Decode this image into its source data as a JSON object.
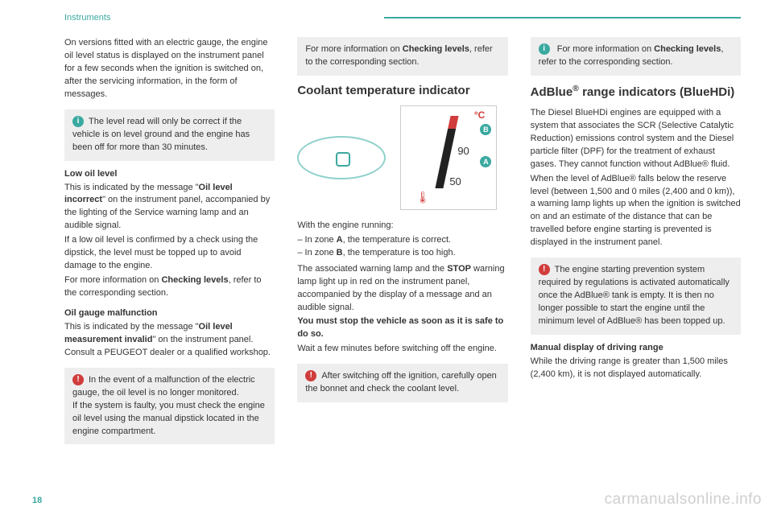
{
  "header": {
    "section": "Instruments"
  },
  "pageNumber": "18",
  "watermark": "carmanualsonline.info",
  "col1": {
    "intro": "On versions fitted with an electric gauge, the engine oil level status is displayed on the instrument panel for a few seconds when the ignition is switched on, after the servicing information, in the form of messages.",
    "infoBox": "The level read will only be correct if the vehicle is on level ground and the engine has been off for more than 30 minutes.",
    "lowOil": {
      "title": "Low oil level",
      "p1a": "This is indicated by the message \"",
      "p1b": "Oil level incorrect",
      "p1c": "\" on the instrument panel, accompanied by the lighting of the Service warning lamp and an audible signal.",
      "p2": "If a low oil level is confirmed by a check using the dipstick, the level must be topped up to avoid damage to the engine.",
      "p3a": "For more information on ",
      "p3b": "Checking levels",
      "p3c": ", refer to the corresponding section."
    },
    "malf": {
      "title": "Oil gauge malfunction",
      "p1a": "This is indicated by the message \"",
      "p1b": "Oil level measurement invalid",
      "p1c": "\" on the instrument panel. Consult a PEUGEOT dealer or a qualified workshop."
    },
    "warnBox": "In the event of a malfunction of the electric gauge, the oil level is no longer monitored.\nIf the system is faulty, you must check the engine oil level using the manual dipstick located in the engine compartment."
  },
  "col2": {
    "topBoxA": "For more information on ",
    "topBoxB": "Checking levels",
    "topBoxC": ", refer to the corresponding section.",
    "h2": "Coolant temperature indicator",
    "gauge": {
      "c": "°C",
      "b": "B",
      "a": "A",
      "v90": "90",
      "v50": "50",
      "icon": "🌡"
    },
    "running": "With the engine running:",
    "zoneA_a": "In zone ",
    "zoneA_b": "A",
    "zoneA_c": ", the temperature is correct.",
    "zoneB_a": "In zone ",
    "zoneB_b": "B",
    "zoneB_c": ", the temperature is too high.",
    "assoc_a": "The associated warning lamp and the ",
    "assoc_b": "STOP",
    "assoc_c": " warning lamp light up in red on the instrument panel, accompanied by the display of a message and an audible signal.",
    "stop": "You must stop the vehicle as soon as it is safe to do so.",
    "wait": "Wait a few minutes before switching off the engine.",
    "warnBox": "After switching off the ignition, carefully open the bonnet and check the coolant level."
  },
  "col3": {
    "topBoxA": "For more information on ",
    "topBoxB": "Checking levels",
    "topBoxC": ", refer to the corresponding section.",
    "h2a": "AdBlue",
    "h2b": "®",
    "h2c": " range indicators (BlueHDi)",
    "p1": "The Diesel BlueHDi engines are equipped with a system that associates the SCR (Selective Catalytic Reduction) emissions control system and the Diesel particle filter (DPF) for the treatment of exhaust gases. They cannot function without AdBlue® fluid.",
    "p2": "When the level of AdBlue® falls below the reserve level (between 1,500 and 0 miles (2,400 and 0 km)), a warning lamp lights up when the ignition is switched on and an estimate of the distance that can be travelled before engine starting is prevented is displayed in the instrument panel.",
    "warnBox": "The engine starting prevention system required by regulations is activated automatically once the AdBlue® tank is empty. It is then no longer possible to start the engine until the minimum level of AdBlue® has been topped up.",
    "manual": {
      "title": "Manual display of driving range",
      "p": "While the driving range is greater than 1,500 miles (2,400 km), it is not displayed automatically."
    }
  }
}
